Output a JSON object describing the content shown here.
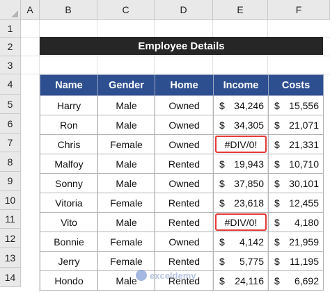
{
  "columns": [
    "A",
    "B",
    "C",
    "D",
    "E",
    "F"
  ],
  "rows": [
    "1",
    "2",
    "3",
    "4",
    "5",
    "6",
    "7",
    "8",
    "9",
    "10",
    "11",
    "12",
    "13",
    "14"
  ],
  "banner": "Employee Details",
  "headers": {
    "name": "Name",
    "gender": "Gender",
    "home": "Home",
    "income": "Income",
    "costs": "Costs"
  },
  "currency": "$",
  "employees": [
    {
      "name": "Harry",
      "gender": "Male",
      "home": "Owned",
      "income": "34,246",
      "costs": "15,556"
    },
    {
      "name": "Ron",
      "gender": "Male",
      "home": "Owned",
      "income": "34,305",
      "costs": "21,071"
    },
    {
      "name": "Chris",
      "gender": "Female",
      "home": "Owned",
      "income": "#DIV/0!",
      "costs": "21,331"
    },
    {
      "name": "Malfoy",
      "gender": "Male",
      "home": "Rented",
      "income": "19,943",
      "costs": "10,710"
    },
    {
      "name": "Sonny",
      "gender": "Male",
      "home": "Owned",
      "income": "37,850",
      "costs": "30,101"
    },
    {
      "name": "Vitoria",
      "gender": "Female",
      "home": "Rented",
      "income": "23,618",
      "costs": "12,455"
    },
    {
      "name": "Vito",
      "gender": "Male",
      "home": "Rented",
      "income": "#DIV/0!",
      "costs": "4,180"
    },
    {
      "name": "Bonnie",
      "gender": "Female",
      "home": "Owned",
      "income": "4,142",
      "costs": "21,959"
    },
    {
      "name": "Jerry",
      "gender": "Female",
      "home": "Rented",
      "income": "5,775",
      "costs": "11,195"
    },
    {
      "name": "Hondo",
      "gender": "Male",
      "home": "Rented",
      "income": "24,116",
      "costs": "6,692"
    }
  ],
  "watermark": "exceldemy",
  "colors": {
    "header_fill": "#2e4f8f",
    "banner_fill": "#262626",
    "error_outline": "#e53935"
  }
}
